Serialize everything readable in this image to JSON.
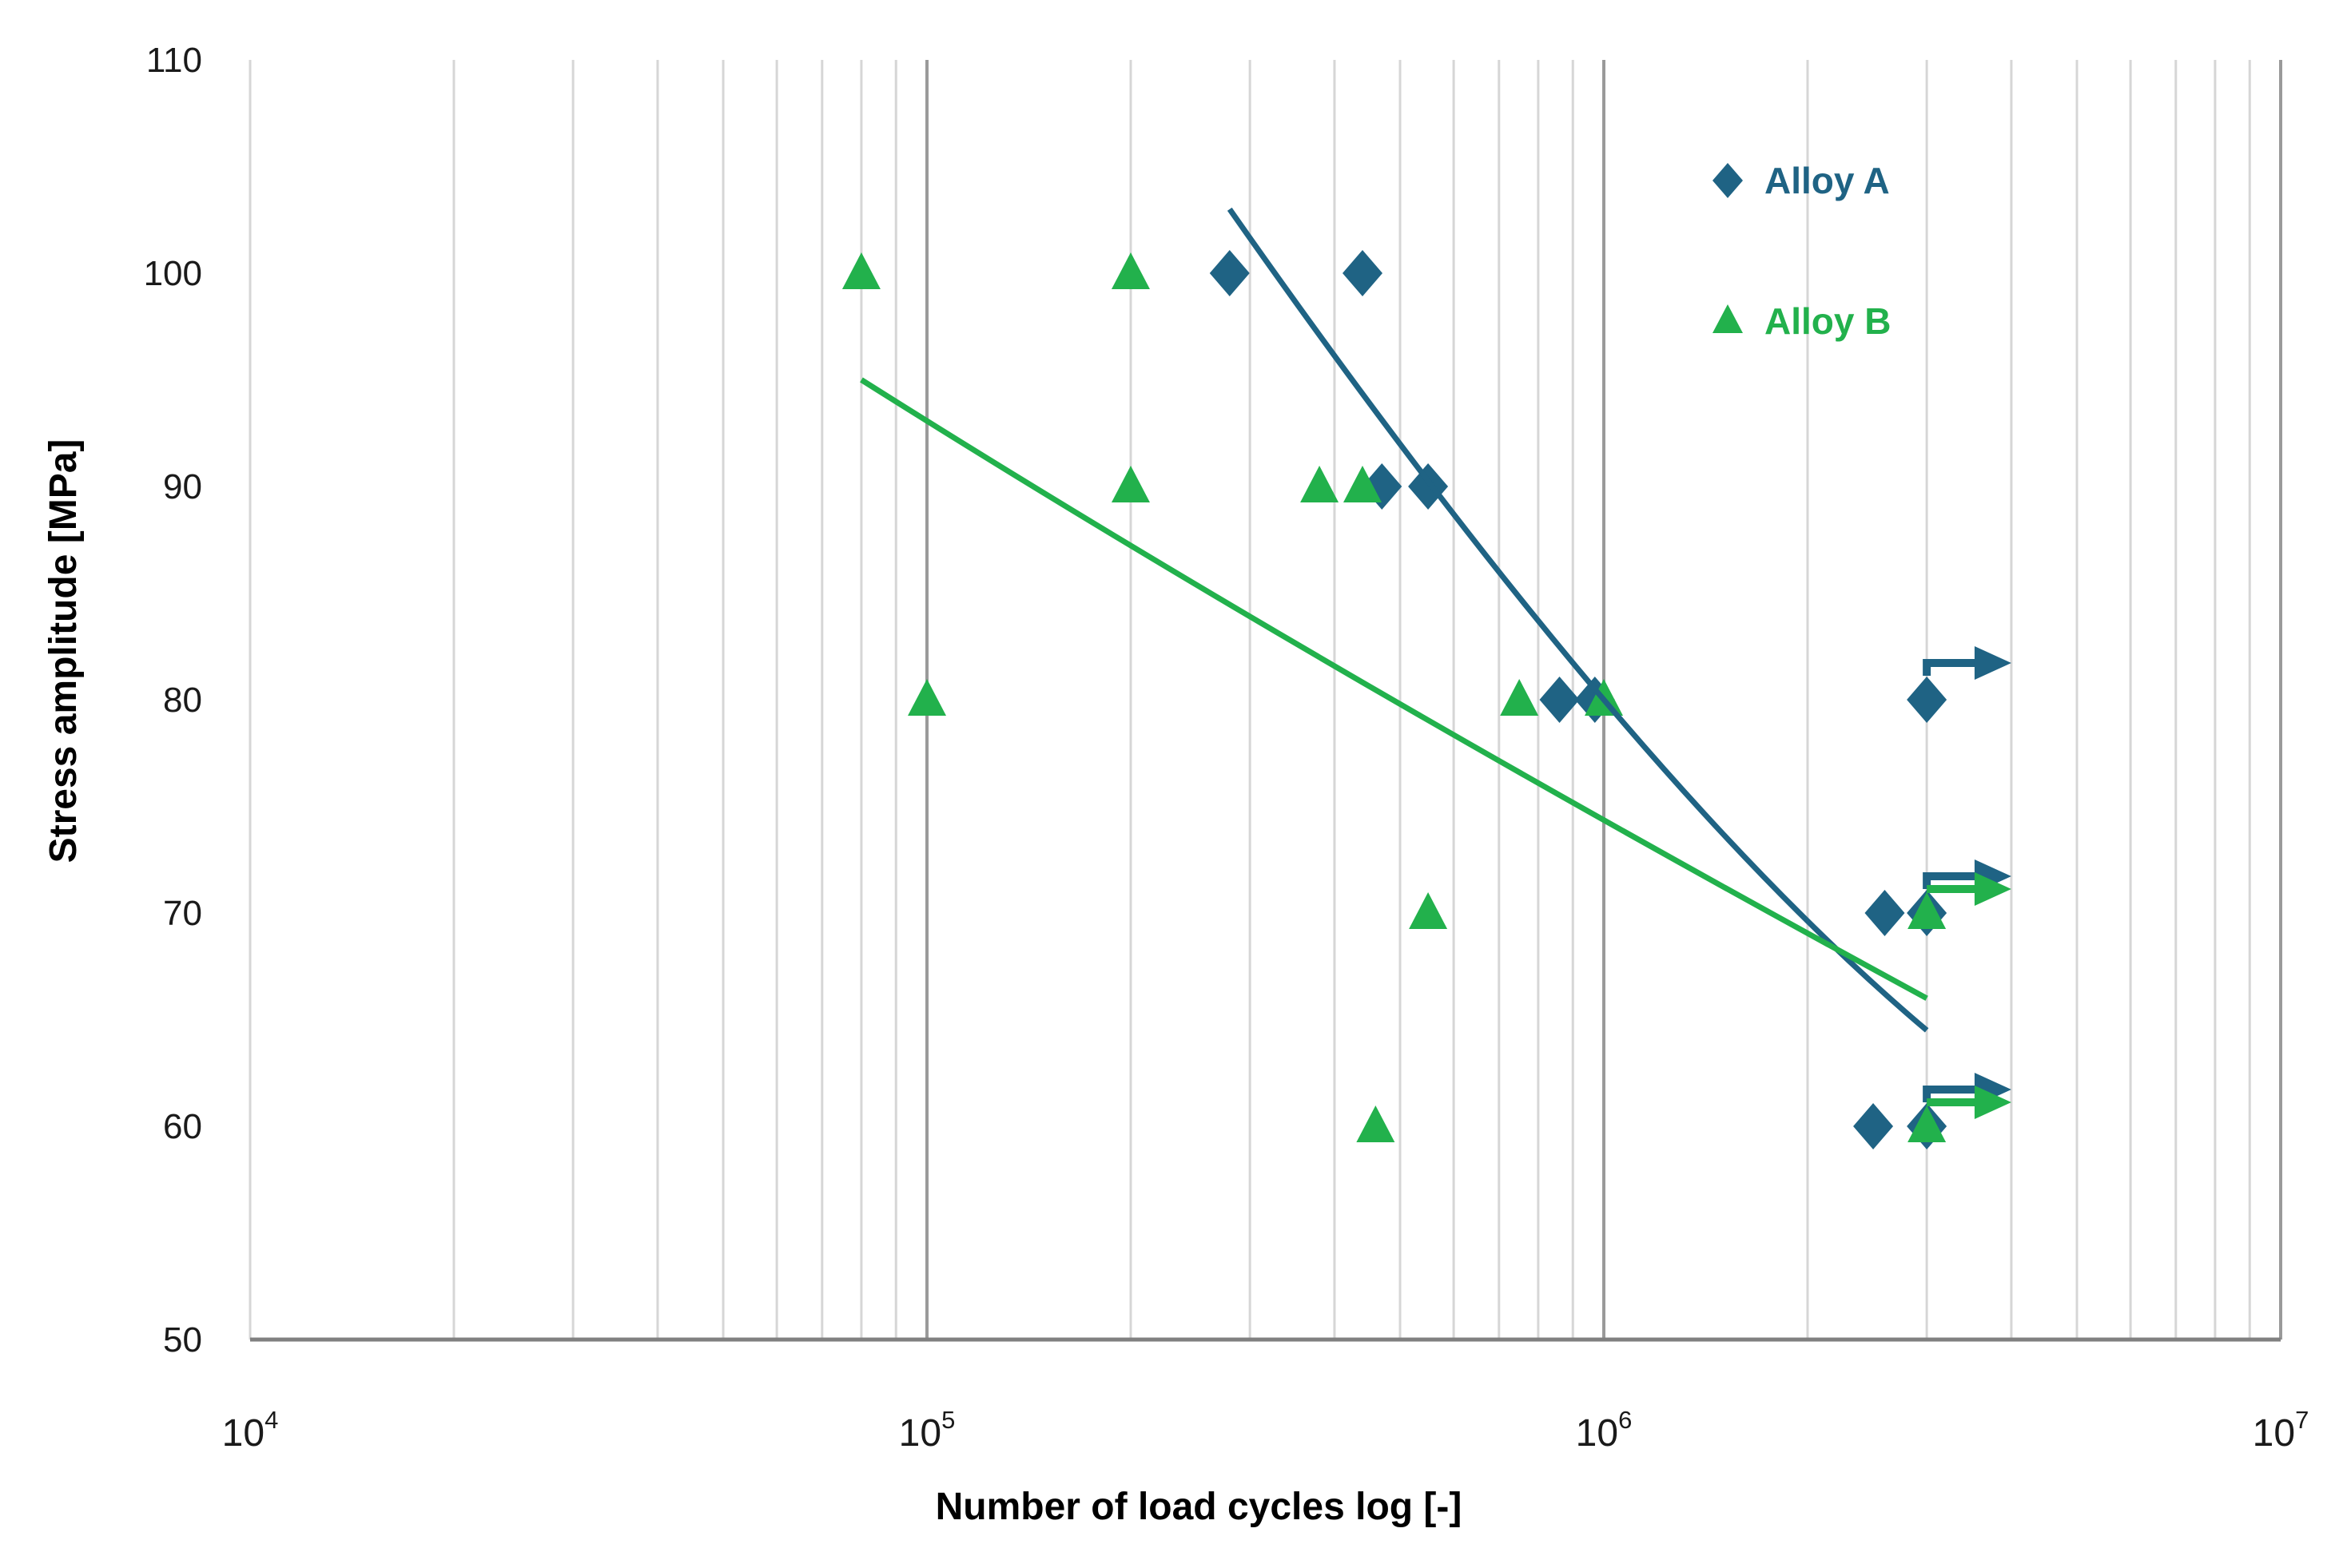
{
  "chart_data": {
    "type": "scatter",
    "title": "",
    "xlabel": "Number of load cycles log [-]",
    "ylabel": "Stress amplitude [MPa]",
    "x_scale": "log",
    "xlim": [
      10000,
      10000000
    ],
    "ylim": [
      50,
      110
    ],
    "y_ticks": [
      110,
      100,
      90,
      80,
      70,
      60,
      50
    ],
    "x_ticks": [
      {
        "value": 10000,
        "mantissa": "10",
        "exponent": "4"
      },
      {
        "value": 100000,
        "mantissa": "10",
        "exponent": "5"
      },
      {
        "value": 1000000,
        "mantissa": "10",
        "exponent": "6"
      },
      {
        "value": 10000000,
        "mantissa": "10",
        "exponent": "7"
      }
    ],
    "grid": {
      "vertical_minor": true,
      "vertical_major_at": [
        100000,
        1000000,
        10000000
      ],
      "horizontal": false
    },
    "runout_arrow_end_x": 4000000,
    "series": [
      {
        "name": "Alloy A",
        "marker": "diamond",
        "color": "#1F6384",
        "points": [
          {
            "x": 280000,
            "y": 100
          },
          {
            "x": 440000,
            "y": 100
          },
          {
            "x": 470000,
            "y": 90
          },
          {
            "x": 550000,
            "y": 90
          },
          {
            "x": 860000,
            "y": 80
          },
          {
            "x": 970000,
            "y": 80
          },
          {
            "x": 2600000,
            "y": 70
          },
          {
            "x": 2500000,
            "y": 60
          },
          {
            "x": 3000000,
            "y": 80,
            "runout": true
          },
          {
            "x": 3000000,
            "y": 70,
            "runout": true
          },
          {
            "x": 3000000,
            "y": 60,
            "runout": true
          }
        ],
        "trend": {
          "points": [
            {
              "x": 280000,
              "y": 103
            },
            {
              "x": 1000000,
              "y": 80
            },
            {
              "x": 3000000,
              "y": 64.5
            }
          ]
        }
      },
      {
        "name": "Alloy B",
        "marker": "triangle",
        "color": "#22B14C",
        "points": [
          {
            "x": 80000,
            "y": 100
          },
          {
            "x": 200000,
            "y": 100
          },
          {
            "x": 200000,
            "y": 90
          },
          {
            "x": 380000,
            "y": 90
          },
          {
            "x": 440000,
            "y": 90
          },
          {
            "x": 100000,
            "y": 80
          },
          {
            "x": 750000,
            "y": 80
          },
          {
            "x": 1000000,
            "y": 80
          },
          {
            "x": 550000,
            "y": 70
          },
          {
            "x": 460000,
            "y": 60
          },
          {
            "x": 3000000,
            "y": 70,
            "runout": true
          },
          {
            "x": 3000000,
            "y": 60,
            "runout": true
          }
        ],
        "trend": {
          "points": [
            {
              "x": 80000,
              "y": 95
            },
            {
              "x": 430000,
              "y": 81
            },
            {
              "x": 3000000,
              "y": 66
            }
          ]
        }
      }
    ],
    "legend": {
      "position": "top-right",
      "entries": [
        {
          "label": "Alloy A"
        },
        {
          "label": "Alloy B"
        }
      ]
    }
  },
  "colors": {
    "background": "#FFFFFF",
    "alloy_a": "#1F6384",
    "alloy_b": "#22B14C",
    "grid_minor": "#D6D6D6",
    "grid_major": "#9A9A9A",
    "axis_line": "#808080",
    "tick_text": "#1A1A1A",
    "axis_title_text": "#000000"
  }
}
